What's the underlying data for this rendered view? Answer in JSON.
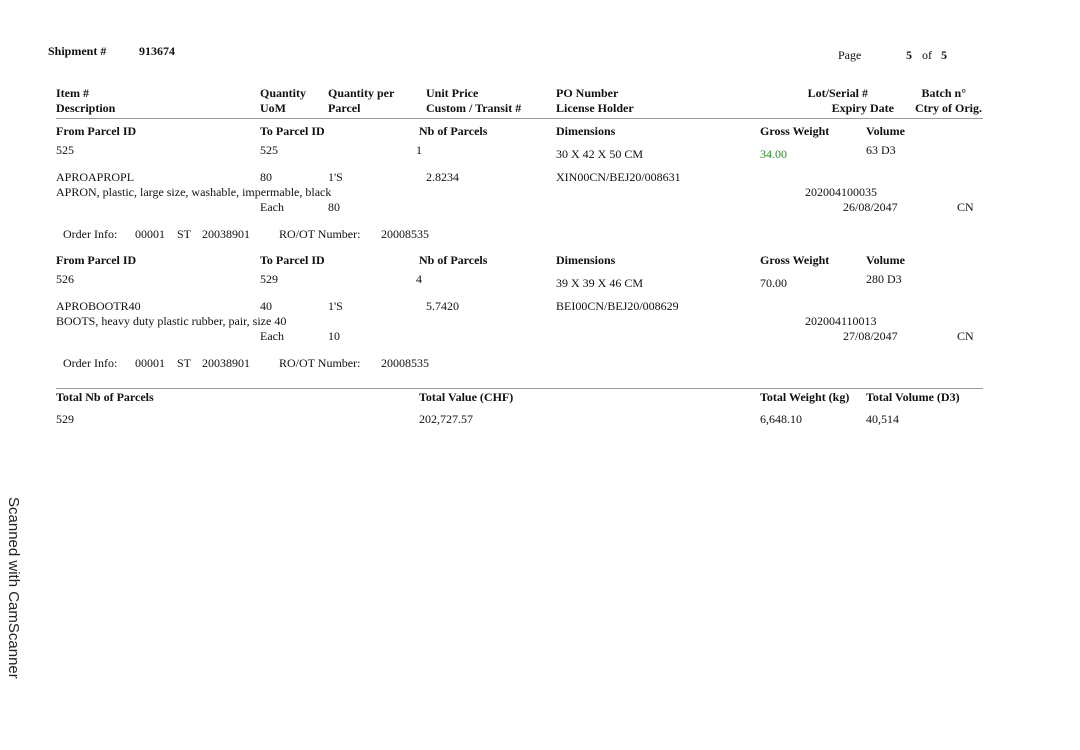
{
  "header": {
    "shipment_label": "Shipment #",
    "shipment_number": "913674",
    "page_label": "Page",
    "page_current": "5",
    "page_of": "of",
    "page_total": "5"
  },
  "columns": {
    "item": "Item #",
    "description": "Description",
    "quantity": "Quantity",
    "uom": "UoM",
    "qty_per": "Quantity per",
    "parcel": "Parcel",
    "unit_price": "Unit Price",
    "custom_transit": "Custom / Transit #",
    "po_number": "PO Number",
    "license_holder": "License Holder",
    "lot_serial": "Lot/Serial #",
    "expiry_date": "Expiry Date",
    "batch": "Batch n°",
    "ctry_orig": "Ctry of Orig."
  },
  "parcel_headers": {
    "from_parcel": "From Parcel ID",
    "to_parcel": "To Parcel ID",
    "nb_parcels": "Nb of Parcels",
    "dimensions": "Dimensions",
    "gross_weight": "Gross Weight",
    "volume": "Volume"
  },
  "labels": {
    "order_info": "Order Info:",
    "ro_ot": "RO/OT Number:"
  },
  "blocks": [
    {
      "from_parcel": "525",
      "to_parcel": "525",
      "nb_parcels": "1",
      "dimensions": "30 X 42 X 50 CM",
      "gross_weight": "34.00",
      "volume": "63 D3",
      "item": "APROAPROPL",
      "quantity": "80",
      "qty_per": "1'S",
      "unit_price": "2.8234",
      "po_number": "XIN00CN/BEJ20/008631",
      "description": "APRON, plastic, large size, washable, impermable, black",
      "lot_serial": "202004100035",
      "uom": "Each",
      "parcel_qty": "80",
      "expiry_date": "26/08/2047",
      "ctry": "CN",
      "order_code1": "00001",
      "order_code2": "ST",
      "order_code3": "20038901",
      "ro_ot": "20008535"
    },
    {
      "from_parcel": "526",
      "to_parcel": "529",
      "nb_parcels": "4",
      "dimensions": "39 X 39 X 46 CM",
      "gross_weight": "70.00",
      "volume": "280 D3",
      "item": "APROBOOTR40",
      "quantity": "40",
      "qty_per": "1'S",
      "unit_price": "5.7420",
      "po_number": "BEI00CN/BEJ20/008629",
      "description": "BOOTS, heavy duty plastic rubber, pair, size 40",
      "lot_serial": "202004110013",
      "uom": "Each",
      "parcel_qty": "10",
      "expiry_date": "27/08/2047",
      "ctry": "CN",
      "order_code1": "00001",
      "order_code2": "ST",
      "order_code3": "20038901",
      "ro_ot": "20008535"
    }
  ],
  "totals": {
    "nb_label": "Total Nb of Parcels",
    "value_label": "Total Value (CHF)",
    "weight_label": "Total Weight (kg)",
    "volume_label": "Total Volume (D3)",
    "nb": "529",
    "value": "202,727.57",
    "weight": "6,648.10",
    "volume": "40,514"
  },
  "watermark": "Scanned with CamScanner"
}
